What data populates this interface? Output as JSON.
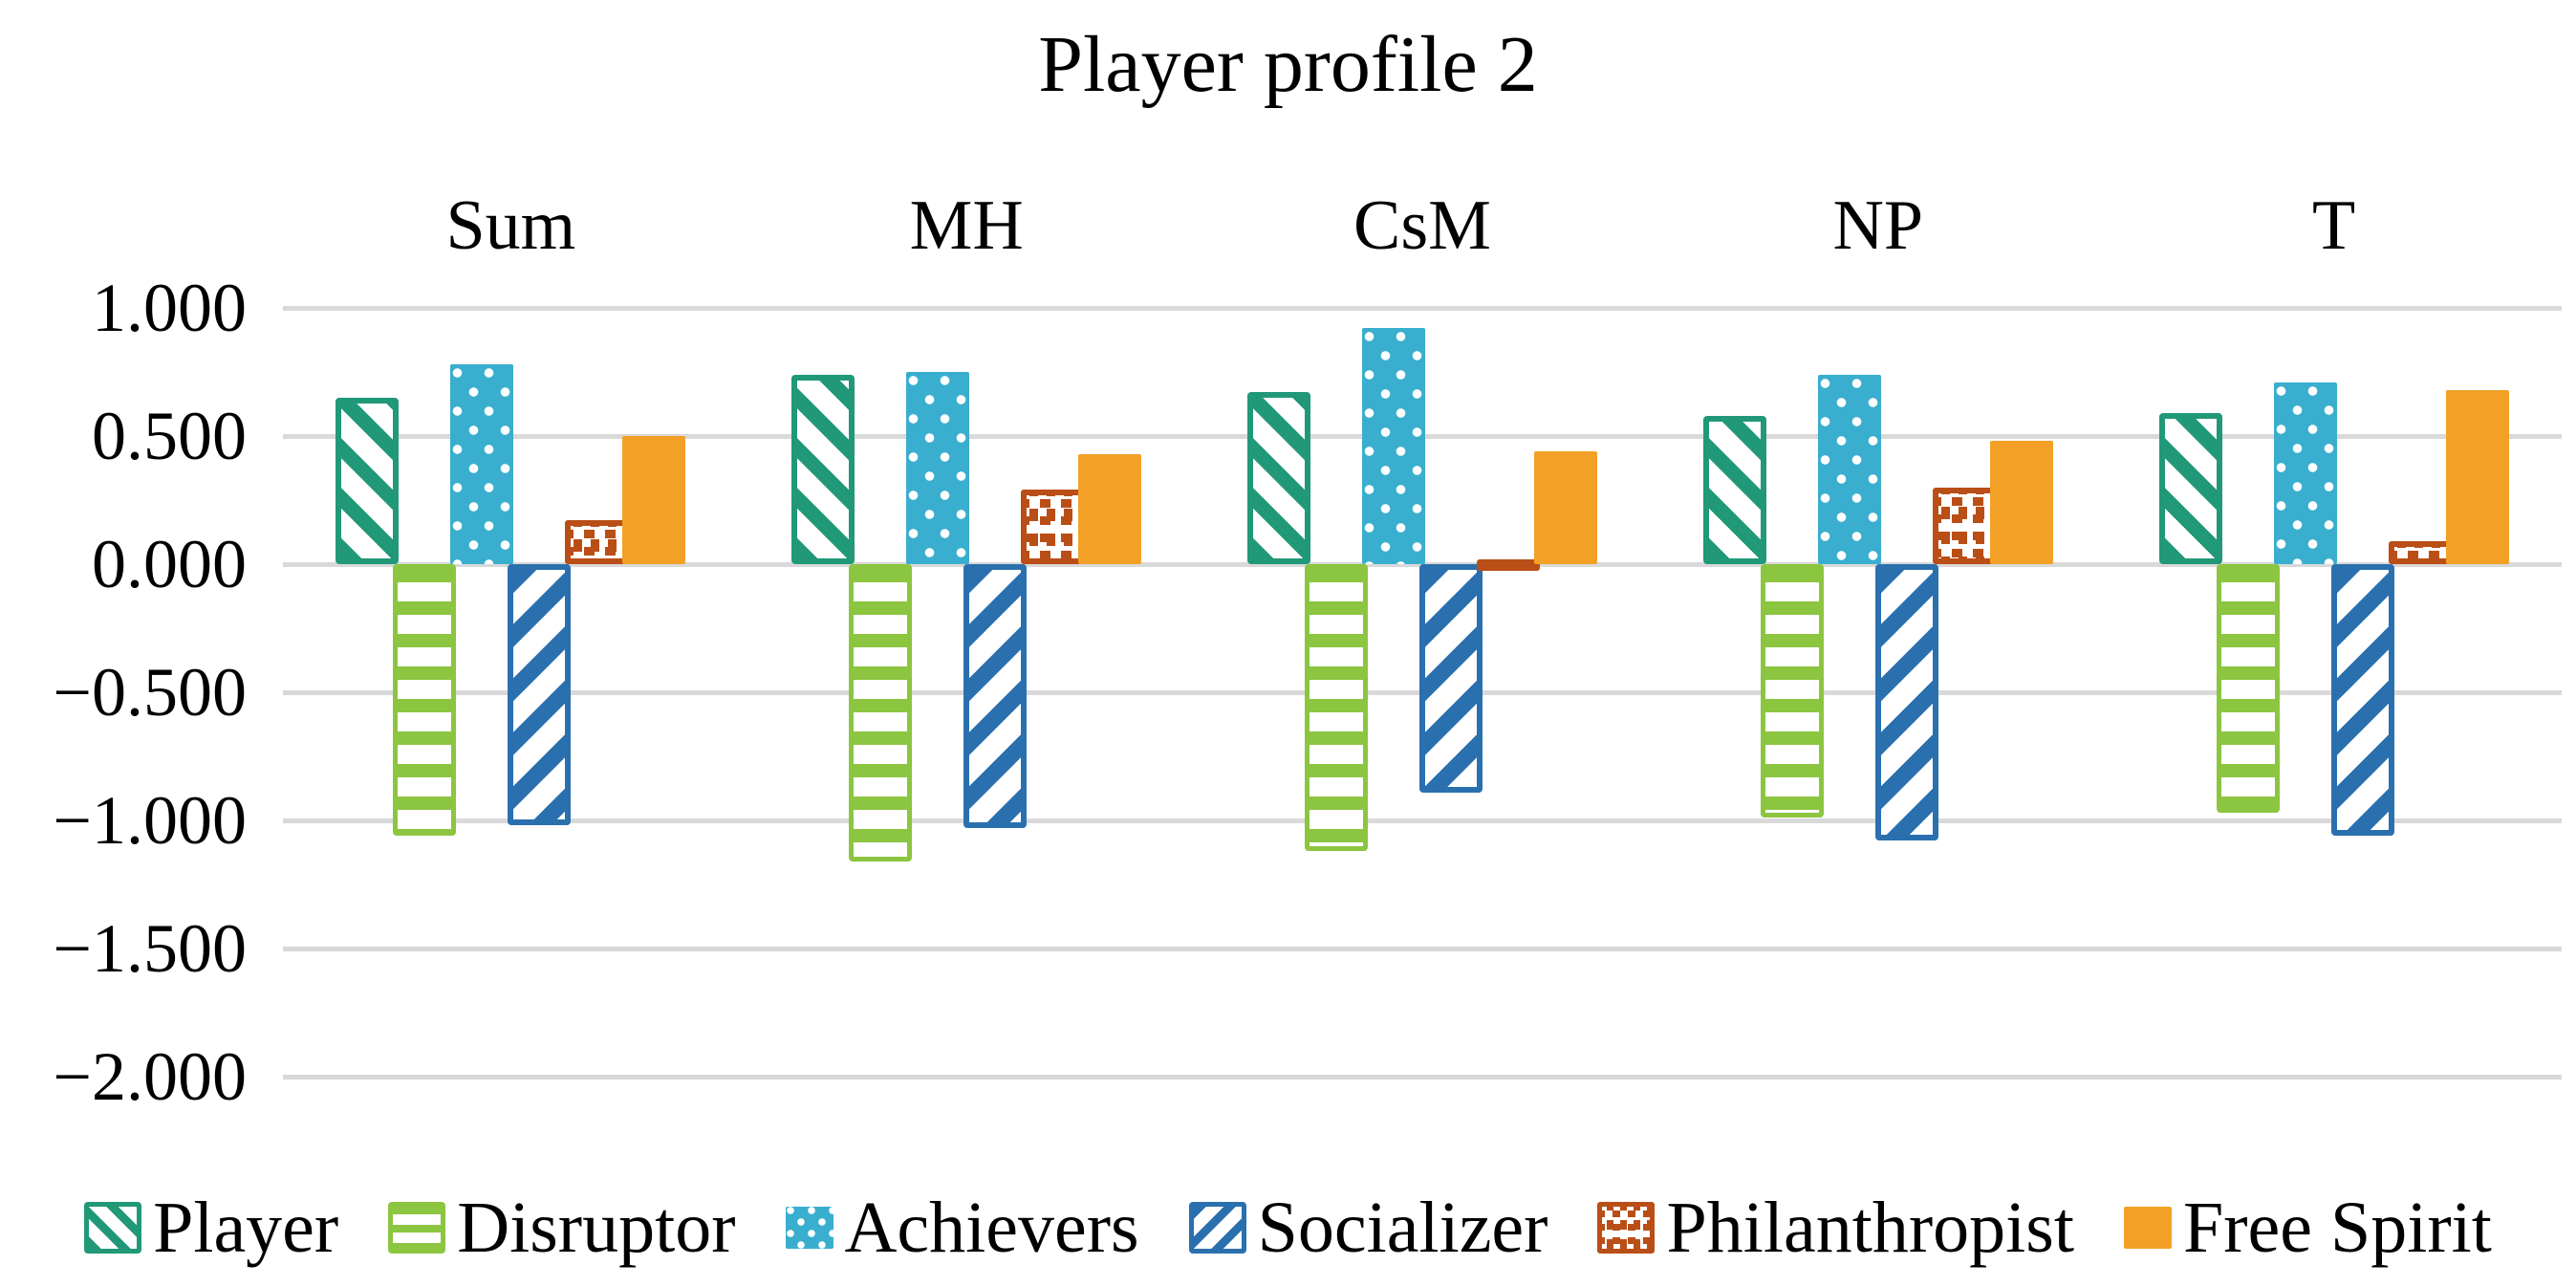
{
  "title": "Player profile 2",
  "colors": {
    "player_teal": "#219878",
    "disruptor_green": "#8CC540",
    "achievers_blue": "#3AAECE",
    "socializer_blue": "#2B70AE",
    "philanthropist_rust": "#BA4E17",
    "free_spirit_orange": "#F2A126",
    "gridline_gray": "#D9D9D9",
    "text_black": "#000000",
    "background": "#FFFFFF"
  },
  "chart_data": {
    "type": "bar",
    "title": "Player profile 2",
    "categories": [
      "Sum",
      "MH",
      "CsM",
      "NP",
      "T"
    ],
    "series": [
      {
        "name": "Player",
        "pattern": "diag-down",
        "color": "#219878",
        "values": [
          0.65,
          0.74,
          0.67,
          0.58,
          0.59
        ]
      },
      {
        "name": "Disruptor",
        "pattern": "hstripe",
        "color": "#8CC540",
        "values": [
          -1.06,
          -1.16,
          -1.12,
          -0.99,
          -0.97
        ]
      },
      {
        "name": "Achievers",
        "pattern": "dots",
        "color": "#3AAECE",
        "values": [
          0.78,
          0.75,
          0.92,
          0.74,
          0.71
        ]
      },
      {
        "name": "Socializer",
        "pattern": "diag-up",
        "color": "#2B70AE",
        "values": [
          -1.02,
          -1.03,
          -0.89,
          -1.08,
          -1.06
        ]
      },
      {
        "name": "Philanthropist",
        "pattern": "speckle",
        "color": "#BA4E17",
        "values": [
          0.17,
          0.29,
          0.02,
          0.3,
          0.09
        ]
      },
      {
        "name": "Free Spirit",
        "pattern": "solid",
        "color": "#F2A126",
        "values": [
          0.5,
          0.43,
          0.44,
          0.48,
          0.68
        ]
      }
    ],
    "y_axis": {
      "min": -2.0,
      "max": 1.0,
      "step": 0.5,
      "tick_labels": [
        "1.000",
        "0.500",
        "0.000",
        "−0.500",
        "−1.000",
        "−1.500",
        "−2.000"
      ]
    },
    "grid": true,
    "legend_position": "bottom"
  }
}
